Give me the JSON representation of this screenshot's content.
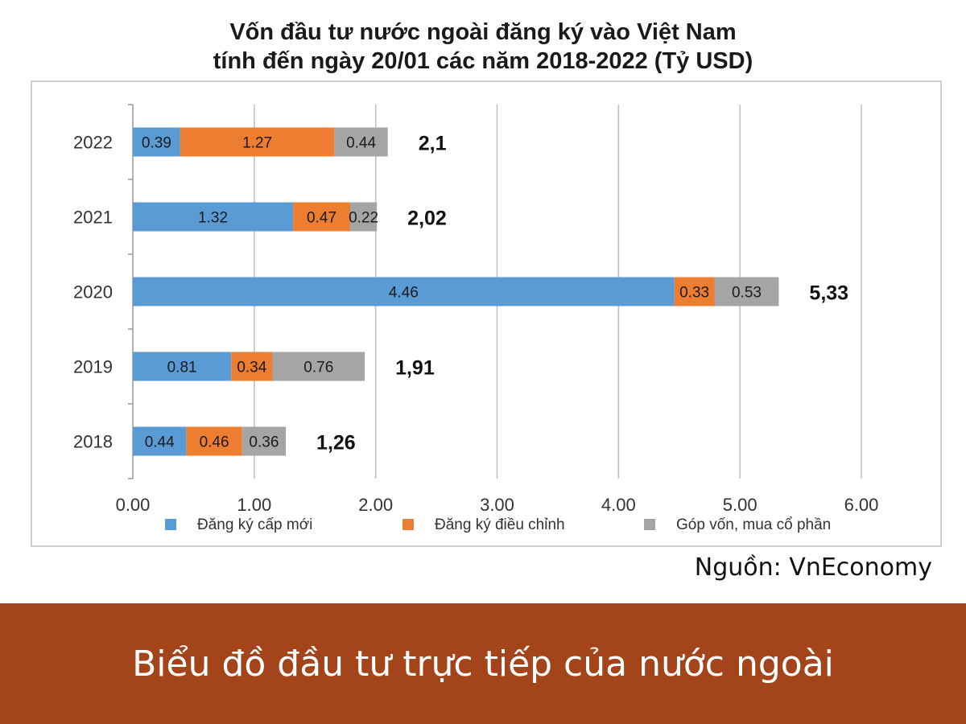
{
  "chart_data": {
    "type": "bar",
    "orientation": "horizontal",
    "stacked": true,
    "title": "Vốn đầu tư nước ngoài đăng ký vào Việt Nam",
    "subtitle": "tính đến ngày 20/01 các năm 2018-2022 (Tỷ USD)",
    "categories": [
      "2022",
      "2021",
      "2020",
      "2019",
      "2018"
    ],
    "series": [
      {
        "name": "Đăng ký cấp mới",
        "color": "#5b9bd5",
        "values": [
          0.39,
          1.32,
          4.46,
          0.81,
          0.44
        ],
        "labels": [
          "0.39",
          "1.32",
          "4.46",
          "0.81",
          "0.44"
        ]
      },
      {
        "name": "Đăng ký điều chỉnh",
        "color": "#ed7d31",
        "values": [
          1.27,
          0.47,
          0.33,
          0.34,
          0.46
        ],
        "labels": [
          "1.27",
          "0.47",
          "0.33",
          "0.34",
          "0.46"
        ]
      },
      {
        "name": "Góp vốn, mua cổ phần",
        "color": "#a5a5a5",
        "values": [
          0.44,
          0.22,
          0.53,
          0.76,
          0.36
        ],
        "labels": [
          "0.44",
          "0.22",
          "0.53",
          "0.76",
          "0.36"
        ]
      }
    ],
    "totals": [
      "2,1",
      "2,02",
      "5,33",
      "1,91",
      "1,26"
    ],
    "total_values": [
      2.1,
      2.02,
      5.33,
      1.91,
      1.26
    ],
    "xticks": [
      "0.00",
      "1.00",
      "2.00",
      "3.00",
      "4.00",
      "5.00",
      "6.00"
    ],
    "xlim": [
      0,
      6
    ],
    "grid": true,
    "legend_position": "bottom"
  },
  "source": "Nguồn: VnEconomy",
  "footer": {
    "caption": "Biểu đồ đầu tư trực tiếp của nước ngoài",
    "background": "#a3441b"
  }
}
